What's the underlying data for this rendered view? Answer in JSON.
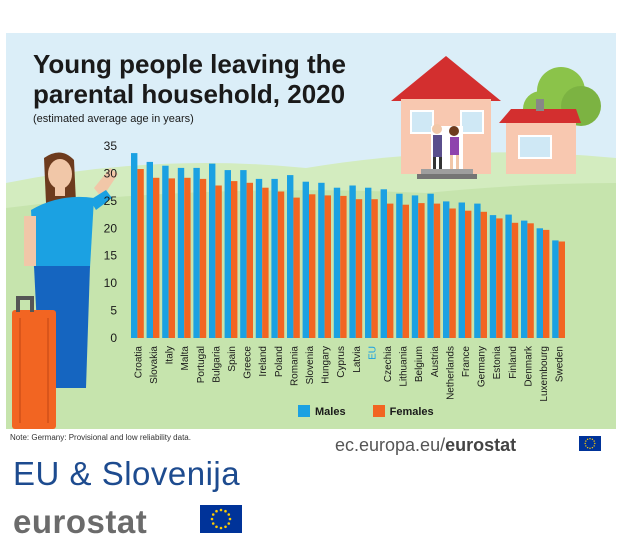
{
  "chart_data": {
    "type": "bar",
    "title": "Young people leaving the parental household, 2020",
    "subtitle": "(estimated average age in years)",
    "categories": [
      "Croatia",
      "Slovakia",
      "Italy",
      "Malta",
      "Portugal",
      "Bulgaria",
      "Spain",
      "Greece",
      "Ireland",
      "Poland",
      "Romania",
      "Slovenia",
      "Hungary",
      "Cyprus",
      "Latvia",
      "EU",
      "Czechia",
      "Lithuania",
      "Belgium",
      "Austria",
      "Netherlands",
      "France",
      "Germany",
      "Estonia",
      "Finland",
      "Denmark",
      "Luxembourg",
      "Sweden"
    ],
    "highlight_category": "EU",
    "series": [
      {
        "name": "Males",
        "color": "#1ba1e2",
        "values": [
          33.7,
          32.1,
          31.4,
          31.0,
          31.0,
          31.8,
          30.6,
          30.6,
          29.0,
          29.0,
          29.7,
          28.5,
          28.3,
          27.4,
          27.8,
          27.4,
          27.1,
          26.3,
          26.0,
          26.3,
          24.9,
          24.7,
          24.5,
          22.4,
          22.5,
          21.4,
          20.0,
          17.8
        ]
      },
      {
        "name": "Females",
        "color": "#f26522",
        "values": [
          30.8,
          29.2,
          29.1,
          29.2,
          29.0,
          27.8,
          28.6,
          28.3,
          27.4,
          26.7,
          25.6,
          26.2,
          26.0,
          25.9,
          25.3,
          25.3,
          24.5,
          24.3,
          24.6,
          24.5,
          23.6,
          23.2,
          23.0,
          21.8,
          21.0,
          20.9,
          19.7,
          17.6
        ]
      }
    ],
    "ylim": [
      0,
      35
    ],
    "yticks": [
      0,
      5,
      10,
      15,
      20,
      25,
      30,
      35
    ],
    "legend": "bottom-center",
    "grid": false
  },
  "note": "Note: Germany: Provisional and low reliability data.",
  "source": {
    "prefix": "ec.europa.eu/",
    "brand": "eurostat"
  },
  "branding": {
    "line1": "EU & Slovenija",
    "line2": "eurostat"
  }
}
